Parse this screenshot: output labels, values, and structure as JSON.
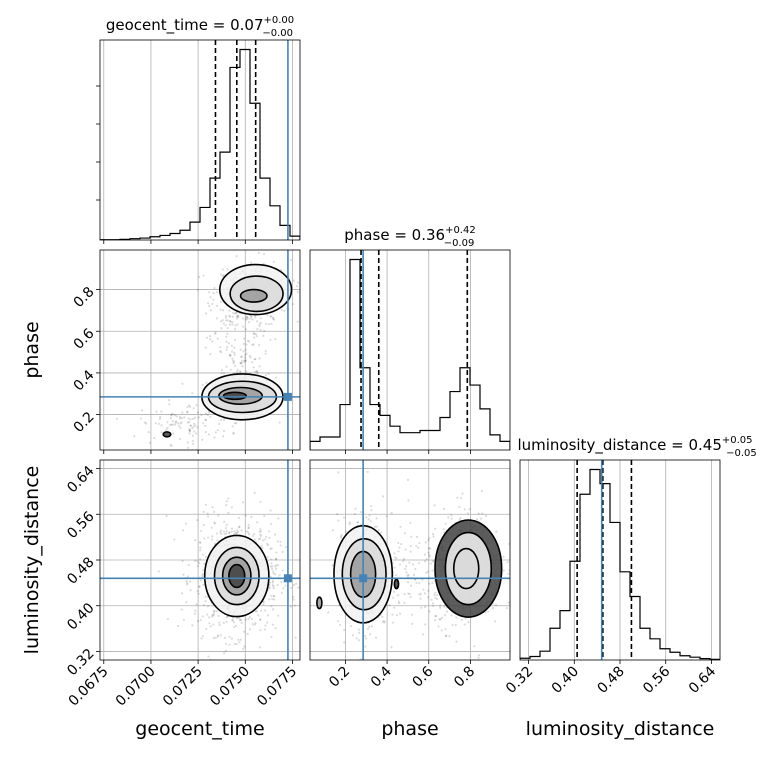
{
  "chart_data": {
    "type": "corner",
    "parameters": [
      "geocent_time",
      "phase",
      "luminosity_distance"
    ],
    "axis_labels": {
      "geocent_time": "geocent_time",
      "phase": "phase",
      "luminosity_distance": "luminosity_distance"
    },
    "ranges": {
      "geocent_time": [
        0.0673,
        0.0779
      ],
      "phase": [
        0.03,
        0.99
      ],
      "luminosity_distance": [
        0.305,
        0.655
      ]
    },
    "ticks": {
      "geocent_time": [
        "0.0675",
        "0.0700",
        "0.0725",
        "0.0750",
        "0.0775"
      ],
      "phase": [
        "0.2",
        "0.4",
        "0.6",
        "0.8"
      ],
      "luminosity_distance": [
        "0.32",
        "0.40",
        "0.48",
        "0.56",
        "0.64"
      ]
    },
    "titles": {
      "geocent_time": {
        "prefix": "geocent_time = ",
        "median": "0.07",
        "plus": "+0.00",
        "minus": "−0.00"
      },
      "phase": {
        "prefix": "phase = ",
        "median": "0.36",
        "plus": "+0.42",
        "minus": "−0.09"
      },
      "luminosity_distance": {
        "prefix": "luminosity_distance = ",
        "median": "0.45",
        "plus": "+0.05",
        "minus": "−0.05"
      }
    },
    "quantiles": {
      "geocent_time": [
        0.07342,
        0.07455,
        0.07555
      ],
      "phase": [
        0.275,
        0.36,
        0.785
      ],
      "luminosity_distance": [
        0.405,
        0.45,
        0.5
      ]
    },
    "truths": {
      "geocent_time": 0.07726,
      "phase": 0.285,
      "luminosity_distance": 0.448
    },
    "truth_color": "#4682b4",
    "quantile_color": "#000000",
    "grid": true,
    "histograms": {
      "geocent_time": {
        "edges": [
          0.0673,
          0.06783,
          0.06836,
          0.06889,
          0.06942,
          0.06995,
          0.07048,
          0.07101,
          0.07154,
          0.07207,
          0.0726,
          0.07313,
          0.07366,
          0.07419,
          0.07472,
          0.07525,
          0.07578,
          0.07631,
          0.07684,
          0.07737,
          0.0779
        ],
        "counts": [
          1,
          1,
          2,
          4,
          6,
          10,
          14,
          20,
          30,
          55,
          100,
          190,
          270,
          530,
          585,
          420,
          190,
          105,
          45,
          12
        ]
      },
      "phase": {
        "edges": [
          0.03,
          0.078,
          0.126,
          0.174,
          0.222,
          0.27,
          0.318,
          0.366,
          0.414,
          0.462,
          0.51,
          0.558,
          0.606,
          0.654,
          0.702,
          0.75,
          0.798,
          0.846,
          0.894,
          0.942,
          0.99
        ],
        "counts": [
          40,
          60,
          60,
          210,
          880,
          380,
          210,
          160,
          110,
          80,
          80,
          90,
          90,
          150,
          270,
          380,
          300,
          190,
          70,
          40
        ]
      },
      "luminosity_distance": {
        "edges": [
          0.305,
          0.3225,
          0.34,
          0.3575,
          0.375,
          0.3925,
          0.41,
          0.4275,
          0.445,
          0.4625,
          0.48,
          0.4975,
          0.515,
          0.5325,
          0.55,
          0.5675,
          0.585,
          0.6025,
          0.62,
          0.6375,
          0.655
        ],
        "counts": [
          5,
          10,
          25,
          90,
          140,
          280,
          470,
          540,
          500,
          390,
          250,
          180,
          90,
          60,
          32,
          22,
          12,
          8,
          4,
          2
        ]
      }
    },
    "contours": [
      {
        "x": "geocent_time",
        "y": "phase",
        "levels": [
          {
            "cx": 0.07485,
            "cy": 0.285,
            "rx": 0.00215,
            "ry": 0.11,
            "rot": 0
          },
          {
            "cx": 0.07485,
            "cy": 0.285,
            "rx": 0.0018,
            "ry": 0.075,
            "rot": 0
          },
          {
            "cx": 0.07475,
            "cy": 0.29,
            "rx": 0.00115,
            "ry": 0.04,
            "rot": 0
          },
          {
            "cx": 0.07445,
            "cy": 0.29,
            "rx": 0.0006,
            "ry": 0.017,
            "rot": 0
          },
          {
            "cx": 0.07555,
            "cy": 0.8,
            "rx": 0.0019,
            "ry": 0.12,
            "rot": 0
          },
          {
            "cx": 0.0756,
            "cy": 0.78,
            "rx": 0.0014,
            "ry": 0.085,
            "rot": 0
          },
          {
            "cx": 0.07545,
            "cy": 0.77,
            "rx": 0.0007,
            "ry": 0.03,
            "rot": 0
          },
          {
            "cx": 0.07085,
            "cy": 0.105,
            "rx": 0.0002,
            "ry": 0.012,
            "rot": 0
          }
        ],
        "clouds": [
          {
            "cx": 0.0748,
            "cy": 0.29,
            "sx": 0.0009,
            "sy": 0.05,
            "n": 420
          },
          {
            "cx": 0.0754,
            "cy": 0.78,
            "sx": 0.001,
            "sy": 0.08,
            "n": 320
          },
          {
            "cx": 0.0747,
            "cy": 0.5,
            "sx": 0.0008,
            "sy": 0.16,
            "n": 160
          },
          {
            "cx": 0.0718,
            "cy": 0.16,
            "sx": 0.0012,
            "sy": 0.05,
            "n": 110
          }
        ]
      },
      {
        "x": "geocent_time",
        "y": "luminosity_distance",
        "levels": [
          {
            "cx": 0.07455,
            "cy": 0.452,
            "rx": 0.0017,
            "ry": 0.071,
            "rot": 0
          },
          {
            "cx": 0.07455,
            "cy": 0.452,
            "rx": 0.00118,
            "ry": 0.05,
            "rot": 0
          },
          {
            "cx": 0.07455,
            "cy": 0.452,
            "rx": 0.00075,
            "ry": 0.033,
            "rot": 0
          },
          {
            "cx": 0.07455,
            "cy": 0.452,
            "rx": 0.00042,
            "ry": 0.02,
            "rot": 0
          }
        ],
        "clouds": [
          {
            "cx": 0.07455,
            "cy": 0.452,
            "sx": 0.0011,
            "sy": 0.05,
            "n": 900
          }
        ]
      },
      {
        "x": "phase",
        "y": "luminosity_distance",
        "levels": [
          {
            "cx": 0.285,
            "cy": 0.455,
            "rx": 0.14,
            "ry": 0.085,
            "rot": 0
          },
          {
            "cx": 0.29,
            "cy": 0.455,
            "rx": 0.105,
            "ry": 0.062,
            "rot": 0
          },
          {
            "cx": 0.285,
            "cy": 0.455,
            "rx": 0.06,
            "ry": 0.04,
            "rot": 0
          },
          {
            "cx": 0.79,
            "cy": 0.465,
            "rx": 0.16,
            "ry": 0.085,
            "rot": 0
          },
          {
            "cx": 0.79,
            "cy": 0.465,
            "rx": 0.11,
            "ry": 0.063,
            "rot": 0
          },
          {
            "cx": 0.78,
            "cy": 0.465,
            "rx": 0.06,
            "ry": 0.035,
            "rot": 0
          },
          {
            "cx": 0.075,
            "cy": 0.405,
            "rx": 0.012,
            "ry": 0.01,
            "rot": 0
          },
          {
            "cx": 0.445,
            "cy": 0.438,
            "rx": 0.01,
            "ry": 0.008,
            "rot": 0
          }
        ],
        "clouds": [
          {
            "cx": 0.285,
            "cy": 0.455,
            "sx": 0.06,
            "sy": 0.05,
            "n": 550
          },
          {
            "cx": 0.79,
            "cy": 0.465,
            "sx": 0.08,
            "sy": 0.05,
            "n": 400
          },
          {
            "cx": 0.55,
            "cy": 0.455,
            "sx": 0.12,
            "sy": 0.05,
            "n": 150
          }
        ]
      }
    ]
  }
}
